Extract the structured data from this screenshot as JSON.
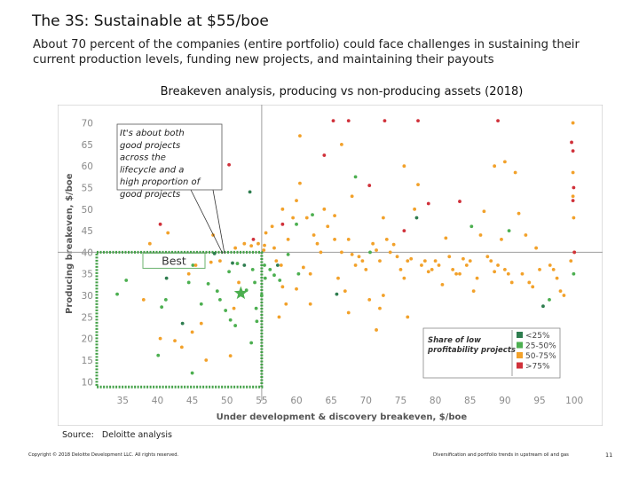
{
  "slide": {
    "title": "The 3S: Sustainable at $55/boe",
    "subtitle": "About 70 percent of the companies (entire portfolio) could face challenges in sustaining their current production levels, funding new projects, and maintaining their payouts",
    "chart_title": "Breakeven analysis, producing vs non-producing assets (2018)",
    "source_label": "Source:",
    "source_value": "Deloitte analysis",
    "copyright": "Copyright © 2018 Deloitte Development LLC. All rights reserved.",
    "footer": "Diversification and portfolio trends in upstream oil and gas",
    "page_number": "11"
  },
  "chart_data": {
    "type": "scatter",
    "title": "Breakeven analysis, producing vs non-producing assets (2018)",
    "xlabel": "Under development & discovery breakeven, $/boe",
    "ylabel": "Producing breakeven, $/boe",
    "xlim": [
      31,
      101
    ],
    "ylim": [
      8,
      73
    ],
    "xticks": [
      35,
      40,
      45,
      50,
      55,
      60,
      65,
      70,
      75,
      80,
      85,
      90,
      95,
      100
    ],
    "yticks": [
      10,
      15,
      20,
      25,
      30,
      35,
      40,
      45,
      50,
      55,
      60,
      65,
      70
    ],
    "threshold_x": 55,
    "threshold_y": 40,
    "grid": false,
    "best_region": {
      "label": "Best",
      "x": [
        33,
        55
      ],
      "y": [
        10,
        40
      ]
    },
    "star": {
      "x": 52,
      "y": 30.5
    },
    "annotation": "It's about both good projects across the lifecycle and a high proportion of good projects",
    "legend": {
      "title": "Share of low profitability projects",
      "position": "bottom-right",
      "items": [
        {
          "label": "<25%",
          "color": "#2e7d4f"
        },
        {
          "label": "25-50%",
          "color": "#4caf50"
        },
        {
          "label": "50-75%",
          "color": "#f2a12a"
        },
        {
          "label": ">75%",
          "color": "#d0313a"
        }
      ]
    },
    "series": [
      {
        "name": "<25%",
        "color": "#2e7d4f",
        "points": [
          [
            41.3,
            34
          ],
          [
            43.6,
            23.5
          ],
          [
            48.2,
            39.7
          ],
          [
            50.8,
            37.5
          ],
          [
            53.3,
            54
          ],
          [
            52.5,
            37
          ],
          [
            57.3,
            37
          ],
          [
            65.8,
            30.3
          ],
          [
            77.3,
            48
          ],
          [
            95.5,
            27.5
          ]
        ]
      },
      {
        "name": "25-50%",
        "color": "#4caf50",
        "points": [
          [
            34.2,
            30.3
          ],
          [
            35.5,
            33.5
          ],
          [
            40.6,
            27.3
          ],
          [
            41.2,
            29
          ],
          [
            44.5,
            33
          ],
          [
            45.1,
            37
          ],
          [
            46.3,
            28
          ],
          [
            47.3,
            32.7
          ],
          [
            48.6,
            31
          ],
          [
            49,
            29
          ],
          [
            49.8,
            26.5
          ],
          [
            50.3,
            35.5
          ],
          [
            50.5,
            24.3
          ],
          [
            51.2,
            23
          ],
          [
            51.5,
            37.4
          ],
          [
            52.2,
            30
          ],
          [
            52.8,
            31.2
          ],
          [
            53.7,
            36
          ],
          [
            54,
            33
          ],
          [
            54.3,
            24
          ],
          [
            55.4,
            37
          ],
          [
            55.5,
            34
          ],
          [
            55,
            30
          ],
          [
            54.2,
            27
          ],
          [
            53.5,
            19
          ],
          [
            56.2,
            36
          ],
          [
            56.8,
            34.7
          ],
          [
            57.6,
            33.5
          ],
          [
            58.8,
            39.5
          ],
          [
            60,
            46.5
          ],
          [
            60.3,
            35
          ],
          [
            62.3,
            48.7
          ],
          [
            68.5,
            57.5
          ],
          [
            70.6,
            40
          ],
          [
            85.2,
            46
          ],
          [
            90.6,
            45
          ],
          [
            96.4,
            29
          ],
          [
            99.9,
            35
          ],
          [
            45,
            12
          ],
          [
            40.1,
            16.1
          ]
        ]
      },
      {
        "name": "50-75%",
        "color": "#f2a12a",
        "points": [
          [
            38,
            29
          ],
          [
            38.9,
            42
          ],
          [
            40.4,
            20
          ],
          [
            41.5,
            44.5
          ],
          [
            42.5,
            19.5
          ],
          [
            45,
            21.5
          ],
          [
            44.5,
            35
          ],
          [
            46.3,
            23.5
          ],
          [
            45.5,
            37
          ],
          [
            47.7,
            37.7
          ],
          [
            49,
            38
          ],
          [
            48,
            44
          ],
          [
            51.2,
            41
          ],
          [
            52.5,
            42
          ],
          [
            53.5,
            41.5
          ],
          [
            54.5,
            42
          ],
          [
            51.7,
            33
          ],
          [
            51,
            27
          ],
          [
            55.3,
            40.5
          ],
          [
            55.4,
            41.6
          ],
          [
            55.6,
            44.5
          ],
          [
            56.5,
            46
          ],
          [
            56.8,
            41
          ],
          [
            57.1,
            38
          ],
          [
            57.8,
            37
          ],
          [
            58.5,
            28
          ],
          [
            58,
            32
          ],
          [
            58.8,
            43
          ],
          [
            59.5,
            48
          ],
          [
            60,
            52
          ],
          [
            60.5,
            56
          ],
          [
            61,
            36.5
          ],
          [
            61.5,
            48
          ],
          [
            62,
            35
          ],
          [
            62.5,
            44
          ],
          [
            63,
            42
          ],
          [
            63.5,
            40
          ],
          [
            64,
            50
          ],
          [
            64.5,
            46
          ],
          [
            65.5,
            43
          ],
          [
            66,
            34
          ],
          [
            66.5,
            40
          ],
          [
            67,
            31
          ],
          [
            67.5,
            43
          ],
          [
            68,
            39.5
          ],
          [
            68.5,
            37
          ],
          [
            69,
            39
          ],
          [
            69.5,
            38
          ],
          [
            70,
            36
          ],
          [
            70.5,
            29
          ],
          [
            71,
            42
          ],
          [
            71.5,
            40.5
          ],
          [
            72,
            38
          ],
          [
            72.5,
            30
          ],
          [
            73,
            43
          ],
          [
            73.5,
            40
          ],
          [
            74,
            41.8
          ],
          [
            74.5,
            39
          ],
          [
            75,
            36
          ],
          [
            75.5,
            34
          ],
          [
            76,
            38
          ],
          [
            76.5,
            38.5
          ],
          [
            77,
            50
          ],
          [
            77.5,
            55.7
          ],
          [
            78,
            37
          ],
          [
            78.5,
            38
          ],
          [
            79,
            35.5
          ],
          [
            79.5,
            36
          ],
          [
            80,
            38
          ],
          [
            80.5,
            37
          ],
          [
            81,
            32.5
          ],
          [
            81.5,
            43.3
          ],
          [
            82,
            39
          ],
          [
            82.5,
            36
          ],
          [
            83,
            35
          ],
          [
            83.5,
            35
          ],
          [
            84,
            38.5
          ],
          [
            84.5,
            37
          ],
          [
            85,
            38
          ],
          [
            85.5,
            31
          ],
          [
            86,
            34
          ],
          [
            86.5,
            44
          ],
          [
            87,
            49.5
          ],
          [
            87.5,
            39
          ],
          [
            88,
            38
          ],
          [
            88.5,
            35.5
          ],
          [
            89,
            37
          ],
          [
            89.5,
            43
          ],
          [
            90,
            36
          ],
          [
            90.5,
            35
          ],
          [
            91,
            33
          ],
          [
            91.5,
            58.5
          ],
          [
            92,
            49
          ],
          [
            92.5,
            35
          ],
          [
            93,
            44
          ],
          [
            93.5,
            33
          ],
          [
            94,
            32
          ],
          [
            94.5,
            41
          ],
          [
            95,
            36
          ],
          [
            96.5,
            37
          ],
          [
            97,
            36
          ],
          [
            97.5,
            34
          ],
          [
            98,
            31
          ],
          [
            98.5,
            30
          ],
          [
            99.5,
            38
          ],
          [
            100,
            40
          ],
          [
            99.8,
            70
          ],
          [
            99.9,
            48
          ],
          [
            99.8,
            53
          ],
          [
            99.8,
            58.5
          ],
          [
            60.5,
            67
          ],
          [
            66.5,
            65
          ],
          [
            75.5,
            60
          ],
          [
            88.5,
            60
          ],
          [
            90,
            61
          ],
          [
            62,
            28
          ],
          [
            76,
            25
          ],
          [
            57.5,
            25
          ],
          [
            67.5,
            26
          ],
          [
            60,
            31.5
          ],
          [
            71.5,
            22
          ],
          [
            72,
            27
          ],
          [
            58,
            50
          ],
          [
            50.5,
            16
          ],
          [
            47,
            15
          ],
          [
            43.5,
            18
          ],
          [
            65.5,
            48.5
          ],
          [
            68,
            53
          ],
          [
            72.5,
            48
          ]
        ]
      },
      {
        "name": ">75%",
        "color": "#d0313a",
        "points": [
          [
            40.4,
            46.5
          ],
          [
            50.3,
            60.3
          ],
          [
            53.8,
            43
          ],
          [
            58,
            46.5
          ],
          [
            64,
            62.5
          ],
          [
            65.3,
            70.5
          ],
          [
            67.5,
            70.5
          ],
          [
            70.5,
            55.5
          ],
          [
            72.7,
            70.5
          ],
          [
            75.5,
            45
          ],
          [
            77.5,
            70.5
          ],
          [
            79,
            51.3
          ],
          [
            83.5,
            51.8
          ],
          [
            89,
            70.5
          ],
          [
            99.8,
            63.5
          ],
          [
            99.6,
            65.5
          ],
          [
            99.9,
            55
          ],
          [
            99.8,
            52
          ],
          [
            100,
            40
          ]
        ]
      }
    ]
  }
}
